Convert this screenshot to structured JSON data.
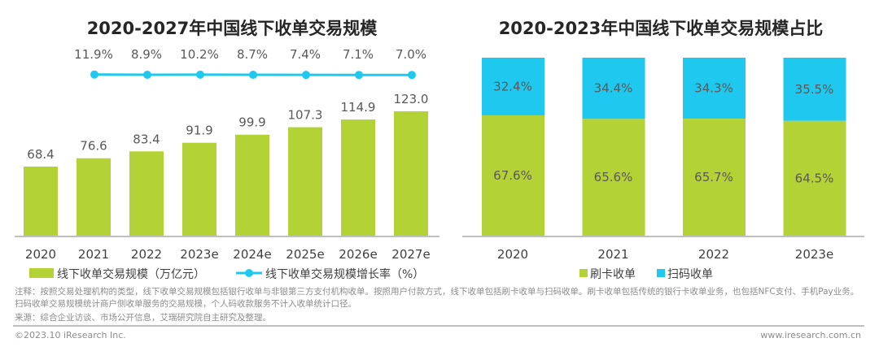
{
  "chart_data": [
    {
      "type": "bar",
      "title": "2020-2027年中国线下收单交易规模",
      "categories": [
        "2020",
        "2021",
        "2022",
        "2023e",
        "2024e",
        "2025e",
        "2026e",
        "2027e"
      ],
      "series": [
        {
          "name": "线下收单交易规模（万亿元）",
          "type": "bar",
          "values": [
            68.4,
            76.6,
            83.4,
            91.9,
            99.9,
            107.3,
            114.9,
            123.0
          ],
          "color": "#b3d235"
        },
        {
          "name": "线下收单交易规模增长率（%）",
          "type": "line",
          "values": [
            null,
            11.9,
            8.9,
            10.2,
            8.7,
            7.4,
            7.1,
            7.0
          ],
          "color": "#1ec8ef"
        }
      ],
      "ylim": [
        0,
        130
      ],
      "legend": "bottom"
    },
    {
      "type": "bar",
      "stacked": true,
      "title": "2020-2023年中国线下收单交易规模占比",
      "categories": [
        "2020",
        "2021",
        "2022",
        "2023e"
      ],
      "series": [
        {
          "name": "刷卡收单",
          "values": [
            67.6,
            65.6,
            65.7,
            64.5
          ],
          "color": "#b3d235"
        },
        {
          "name": "扫码收单",
          "values": [
            32.4,
            34.4,
            34.3,
            35.5
          ],
          "color": "#1ec8ef"
        }
      ],
      "ylim": [
        0,
        100
      ],
      "legend": "bottom"
    }
  ],
  "notes": {
    "line1": "注释：按照交易处理机构的类型，线下收单交易规模包括银行收单与非银第三方支付机构收单。按照用户付款方式，线下收单包括刷卡收单与扫码收单。刷卡收单包括传统的银行卡收单业务，也包括NFC支付、手机Pay业务。扫码收单交易规模统计商户侧收单服务的交易规模，个人码收款服务不计入收单统计口径。",
    "source": "来源：综合企业访谈、市场公开信息，艾瑞研究院自主研究及整理。"
  },
  "footer": {
    "copyright": "©2023.10 iResearch Inc.",
    "site": "www.iresearch.com.cn"
  }
}
